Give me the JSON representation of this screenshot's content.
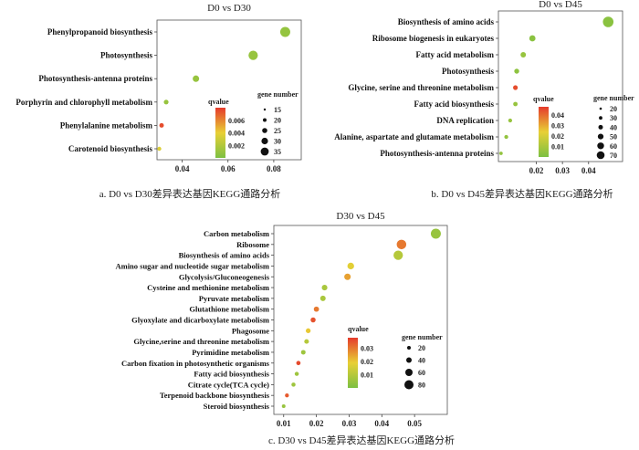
{
  "colors": {
    "qvalue_low": "#7CC042",
    "qvalue_mid": "#E8D035",
    "qvalue_high": "#E53A2C"
  },
  "chart_data": [
    {
      "type": "scatter",
      "panel": "a",
      "title": "D0 vs D30",
      "caption": "a.  D0 vs D30差异表达基因KEGG通路分析",
      "xlim": [
        0.029,
        0.092
      ],
      "x_ticks": [
        0.04,
        0.06,
        0.08
      ],
      "x_tick_labels": [
        "0.04",
        "0.06",
        "0.08"
      ],
      "categories": [
        "Phenylpropanoid biosynthesis",
        "Photosynthesis",
        "Photosynthesis-antenna proteins",
        "Porphyrin and chlorophyll metabolism",
        "Phenylalanine metabolism",
        "Carotenoid biosynthesis"
      ],
      "points": [
        {
          "pathway": "Phenylpropanoid biosynthesis",
          "x": 0.085,
          "gene_number": 35,
          "qvalue": 0.0009
        },
        {
          "pathway": "Photosynthesis",
          "x": 0.071,
          "gene_number": 32,
          "qvalue": 0.001
        },
        {
          "pathway": "Photosynthesis-antenna proteins",
          "x": 0.046,
          "gene_number": 20,
          "qvalue": 0.001
        },
        {
          "pathway": "Porphyrin and chlorophyll metabolism",
          "x": 0.033,
          "gene_number": 13,
          "qvalue": 0.001
        },
        {
          "pathway": "Phenylalanine metabolism",
          "x": 0.031,
          "gene_number": 12,
          "qvalue": 0.0075
        },
        {
          "pathway": "Carotenoid biosynthesis",
          "x": 0.03,
          "gene_number": 10,
          "qvalue": 0.0035
        }
      ],
      "color_legend": {
        "title": "qvalue",
        "range": [
          0,
          0.008
        ],
        "ticks": [
          "0.006",
          "0.004",
          "0.002"
        ]
      },
      "size_legend": {
        "title": "gene number",
        "ticks": [
          "15",
          "20",
          "25",
          "30",
          "35"
        ]
      }
    },
    {
      "type": "scatter",
      "panel": "b",
      "title": "D0 vs D45",
      "caption": "b.  D0 vs D45差异表达基因KEGG通路分析",
      "xlim": [
        0.0055,
        0.053
      ],
      "x_ticks": [
        0.02,
        0.03,
        0.04
      ],
      "x_tick_labels": [
        "0.02",
        "0.03",
        "0.04"
      ],
      "categories": [
        "Biosynthesis of amino acids",
        "Ribosome biogenesis in eukaryotes",
        "Fatty acid metabolism",
        "Photosynthesis",
        "Glycine, serine and threonine metabolism",
        "Fatty acid biosynthesis",
        "DNA replication",
        "Alanine, aspartate and glutamate metabolism",
        "Photosynthesis-antenna proteins"
      ],
      "points": [
        {
          "pathway": "Biosynthesis of amino acids",
          "x": 0.0475,
          "gene_number": 72,
          "qvalue": 0.003
        },
        {
          "pathway": "Ribosome biogenesis in eukaryotes",
          "x": 0.0185,
          "gene_number": 38,
          "qvalue": 0.003
        },
        {
          "pathway": "Fatty acid metabolism",
          "x": 0.015,
          "gene_number": 32,
          "qvalue": 0.006
        },
        {
          "pathway": "Photosynthesis",
          "x": 0.0125,
          "gene_number": 28,
          "qvalue": 0.004
        },
        {
          "pathway": "Glycine, serine and threonine metabolism",
          "x": 0.012,
          "gene_number": 26,
          "qvalue": 0.045
        },
        {
          "pathway": "Fatty acid biosynthesis",
          "x": 0.012,
          "gene_number": 24,
          "qvalue": 0.006
        },
        {
          "pathway": "DNA replication",
          "x": 0.01,
          "gene_number": 20,
          "qvalue": 0.006
        },
        {
          "pathway": "Alanine, aspartate and glutamate metabolism",
          "x": 0.0085,
          "gene_number": 20,
          "qvalue": 0.005
        },
        {
          "pathway": "Photosynthesis-antenna proteins",
          "x": 0.0065,
          "gene_number": 16,
          "qvalue": 0.005
        }
      ],
      "color_legend": {
        "title": "qvalue",
        "range": [
          0,
          0.048
        ],
        "ticks": [
          "0.04",
          "0.03",
          "0.02",
          "0.01"
        ]
      },
      "size_legend": {
        "title": "gene number",
        "ticks": [
          "20",
          "30",
          "40",
          "50",
          "60",
          "70"
        ]
      }
    },
    {
      "type": "scatter",
      "panel": "c",
      "title": "D30 vs D45",
      "caption": "c.  D30 vs D45差异表达基因KEGG通路分析",
      "xlim": [
        0.007,
        0.06
      ],
      "x_ticks": [
        0.01,
        0.02,
        0.03,
        0.04,
        0.05
      ],
      "x_tick_labels": [
        "0.01",
        "0.02",
        "0.03",
        "0.04",
        "0.05"
      ],
      "categories": [
        "Carbon metabolism",
        "Ribosome",
        "Biosynthesis of amino acids",
        "Amino sugar and nucleotide sugar metabolism",
        "Glycolysis/Gluconeogenesis",
        "Cysteine and methionine metabolism",
        "Pyruvate metabolism",
        "Glutathione metabolism",
        "Glyoxylate and dicarboxylate metabolism",
        "Phagosome",
        "Glycine,serine and threonine metabolism",
        "Pyrimidine metabolism",
        "Carbon fixation in photosynthetic organisms",
        "Fatty acid biosynthesis",
        "Citrate cycle(TCA cycle)",
        "Terpenoid backbone biosynthesis",
        "Steroid biosynthesis"
      ],
      "points": [
        {
          "pathway": "Carbon metabolism",
          "x": 0.0565,
          "gene_number": 85,
          "qvalue": 0.005
        },
        {
          "pathway": "Ribosome",
          "x": 0.046,
          "gene_number": 80,
          "qvalue": 0.03
        },
        {
          "pathway": "Biosynthesis of amino acids",
          "x": 0.045,
          "gene_number": 78,
          "qvalue": 0.01
        },
        {
          "pathway": "Amino sugar and nucleotide sugar metabolism",
          "x": 0.0305,
          "gene_number": 48,
          "qvalue": 0.018
        },
        {
          "pathway": "Glycolysis/Gluconeogenesis",
          "x": 0.0295,
          "gene_number": 46,
          "qvalue": 0.025
        },
        {
          "pathway": "Cysteine and methionine metabolism",
          "x": 0.0225,
          "gene_number": 36,
          "qvalue": 0.008
        },
        {
          "pathway": "Pyruvate metabolism",
          "x": 0.022,
          "gene_number": 35,
          "qvalue": 0.008
        },
        {
          "pathway": "Glutathione metabolism",
          "x": 0.02,
          "gene_number": 32,
          "qvalue": 0.03
        },
        {
          "pathway": "Glyoxylate and dicarboxylate metabolism",
          "x": 0.019,
          "gene_number": 30,
          "qvalue": 0.035
        },
        {
          "pathway": "Phagosome",
          "x": 0.0175,
          "gene_number": 28,
          "qvalue": 0.02
        },
        {
          "pathway": "Glycine,serine and threonine metabolism",
          "x": 0.017,
          "gene_number": 26,
          "qvalue": 0.01
        },
        {
          "pathway": "Pyrimidine metabolism",
          "x": 0.016,
          "gene_number": 25,
          "qvalue": 0.006
        },
        {
          "pathway": "Carbon fixation in photosynthetic organisms",
          "x": 0.0145,
          "gene_number": 22,
          "qvalue": 0.036
        },
        {
          "pathway": "Fatty acid biosynthesis",
          "x": 0.014,
          "gene_number": 20,
          "qvalue": 0.006
        },
        {
          "pathway": "Citrate cycle(TCA cycle)",
          "x": 0.013,
          "gene_number": 20,
          "qvalue": 0.006
        },
        {
          "pathway": "Terpenoid backbone biosynthesis",
          "x": 0.011,
          "gene_number": 18,
          "qvalue": 0.034
        },
        {
          "pathway": "Steroid biosynthesis",
          "x": 0.01,
          "gene_number": 15,
          "qvalue": 0.005
        }
      ],
      "color_legend": {
        "title": "qvalue",
        "range": [
          0,
          0.038
        ],
        "ticks": [
          "0.03",
          "0.02",
          "0.01"
        ]
      },
      "size_legend": {
        "title": "gene number",
        "ticks": [
          "20",
          "40",
          "60",
          "80"
        ]
      }
    }
  ]
}
